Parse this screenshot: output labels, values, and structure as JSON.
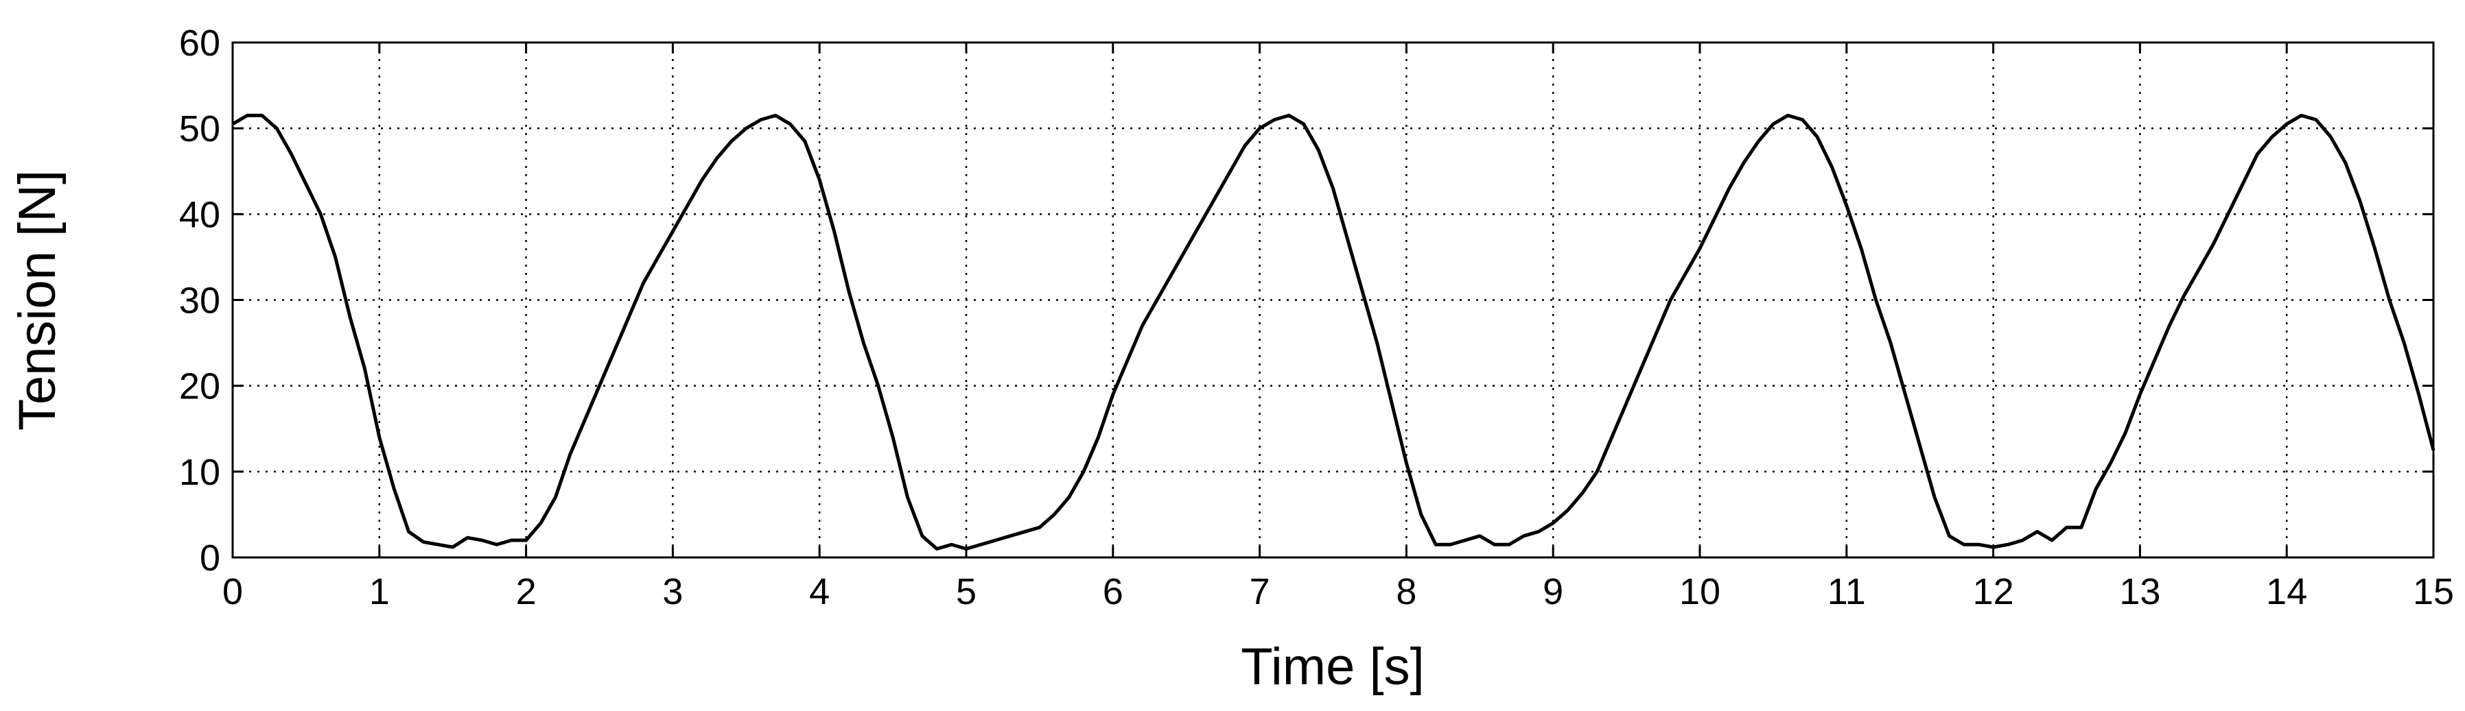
{
  "chart_data": {
    "type": "line",
    "xlabel": "Time [s]",
    "ylabel": "Tension [N]",
    "x": [
      0,
      0.1,
      0.2,
      0.3,
      0.4,
      0.5,
      0.6,
      0.7,
      0.8,
      0.9,
      1,
      1.1,
      1.2,
      1.3,
      1.4,
      1.5,
      1.6,
      1.7,
      1.8,
      1.9,
      2,
      2.1,
      2.2,
      2.3,
      2.4,
      2.5,
      2.6,
      2.7,
      2.8,
      2.9,
      3,
      3.1,
      3.2,
      3.3,
      3.4,
      3.5,
      3.6,
      3.7,
      3.8,
      3.9,
      4,
      4.1,
      4.2,
      4.3,
      4.4,
      4.5,
      4.6,
      4.7,
      4.8,
      4.9,
      5,
      5.1,
      5.2,
      5.3,
      5.4,
      5.5,
      5.6,
      5.7,
      5.8,
      5.9,
      6,
      6.1,
      6.2,
      6.3,
      6.4,
      6.5,
      6.6,
      6.7,
      6.8,
      6.9,
      7,
      7.1,
      7.2,
      7.3,
      7.4,
      7.5,
      7.6,
      7.7,
      7.8,
      7.9,
      8,
      8.1,
      8.2,
      8.3,
      8.4,
      8.5,
      8.6,
      8.7,
      8.8,
      8.9,
      9,
      9.1,
      9.2,
      9.3,
      9.4,
      9.5,
      9.6,
      9.7,
      9.8,
      9.9,
      10,
      10.1,
      10.2,
      10.3,
      10.4,
      10.5,
      10.6,
      10.7,
      10.8,
      10.9,
      11,
      11.1,
      11.2,
      11.3,
      11.4,
      11.5,
      11.6,
      11.7,
      11.8,
      11.9,
      12,
      12.1,
      12.2,
      12.3,
      12.4,
      12.5,
      12.6,
      12.7,
      12.8,
      12.9,
      13,
      13.1,
      13.2,
      13.3,
      13.4,
      13.5,
      13.6,
      13.7,
      13.8,
      13.9,
      14,
      14.1,
      14.2,
      14.3,
      14.4,
      14.5,
      14.6,
      14.7,
      14.8,
      14.9,
      15
    ],
    "series": [
      {
        "color": "#000000",
        "values": [
          50.5,
          51.5,
          51.5,
          50,
          47,
          43.5,
          40,
          35,
          28,
          22,
          14,
          8,
          3,
          1.8,
          1.5,
          1.2,
          2.3,
          2,
          1.5,
          2,
          2,
          4,
          7,
          12,
          16,
          20,
          24,
          28,
          32,
          35,
          38,
          41,
          44,
          46.5,
          48.5,
          50,
          51,
          51.5,
          50.5,
          48.5,
          44,
          38,
          31,
          25,
          20,
          14,
          7,
          2.5,
          1,
          1.5,
          1,
          1.5,
          2,
          2.5,
          3,
          3.5,
          5,
          7,
          10,
          14,
          19,
          23,
          27,
          30,
          33,
          36,
          39,
          42,
          45,
          48,
          50,
          51,
          51.5,
          50.5,
          47.5,
          43,
          37,
          31,
          25,
          18,
          11,
          5,
          1.5,
          1.5,
          2,
          2.5,
          1.5,
          1.5,
          2.5,
          3,
          4,
          5.5,
          7.5,
          10,
          14,
          18,
          22,
          26,
          30,
          33,
          36,
          39.5,
          43,
          46,
          48.5,
          50.5,
          51.5,
          51,
          49,
          45.5,
          41,
          36,
          30,
          25,
          19,
          13,
          7,
          2.5,
          1.5,
          1.5,
          1.2,
          1.5,
          2,
          3,
          2,
          3.5,
          3.5,
          8,
          11,
          14.5,
          19,
          23,
          27,
          30.5,
          33.5,
          36.5,
          40,
          43.5,
          47,
          49,
          50.5,
          51.5,
          51,
          49,
          46,
          41.5,
          36,
          30,
          25,
          19,
          12.5
        ]
      }
    ],
    "xlim": [
      0,
      15
    ],
    "xticks": [
      0,
      1,
      2,
      3,
      4,
      5,
      6,
      7,
      8,
      9,
      10,
      11,
      12,
      13,
      14,
      15
    ],
    "ylim": [
      0,
      60
    ],
    "yticks": [
      0,
      10,
      20,
      30,
      40,
      50,
      60
    ],
    "grid": true
  }
}
